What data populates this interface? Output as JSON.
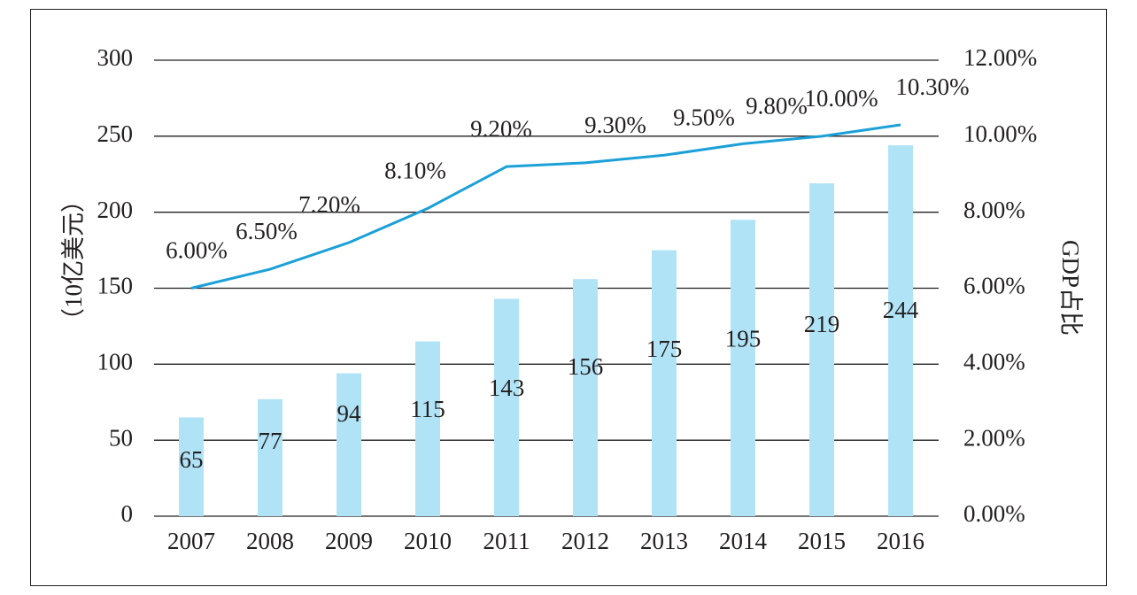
{
  "chart_data": {
    "type": "bar+line",
    "categories": [
      "2007",
      "2008",
      "2009",
      "2010",
      "2011",
      "2012",
      "2013",
      "2014",
      "2015",
      "2016"
    ],
    "series": [
      {
        "axis": "left",
        "type": "bar",
        "values": [
          65,
          77,
          94,
          115,
          143,
          156,
          175,
          195,
          219,
          244
        ],
        "labels": [
          "65",
          "77",
          "94",
          "115",
          "143",
          "156",
          "175",
          "195",
          "219",
          "244"
        ],
        "color": "#b1e3f7"
      },
      {
        "axis": "right",
        "type": "line",
        "values": [
          6.0,
          6.5,
          7.2,
          8.1,
          9.2,
          9.3,
          9.5,
          9.8,
          10.0,
          10.3
        ],
        "labels": [
          "6.00%",
          "6.50%",
          "7.20%",
          "8.10%",
          "9.20%",
          "9.30%",
          "9.50%",
          "9.80%",
          "10.00%",
          "10.30%"
        ],
        "color": "#1ca0d8"
      }
    ],
    "ylabel_left": "（10亿美元）",
    "ylabel_right": "GDP占比",
    "ylim_left": [
      0,
      300
    ],
    "ylim_right": [
      0,
      12
    ],
    "yticks_left": [
      "0",
      "50",
      "100",
      "150",
      "200",
      "250",
      "300"
    ],
    "yticks_right": [
      "0.00%",
      "2.00%",
      "4.00%",
      "6.00%",
      "8.00%",
      "10.00%",
      "12.00%"
    ],
    "grid": true,
    "gridline_color": "#231f20"
  }
}
